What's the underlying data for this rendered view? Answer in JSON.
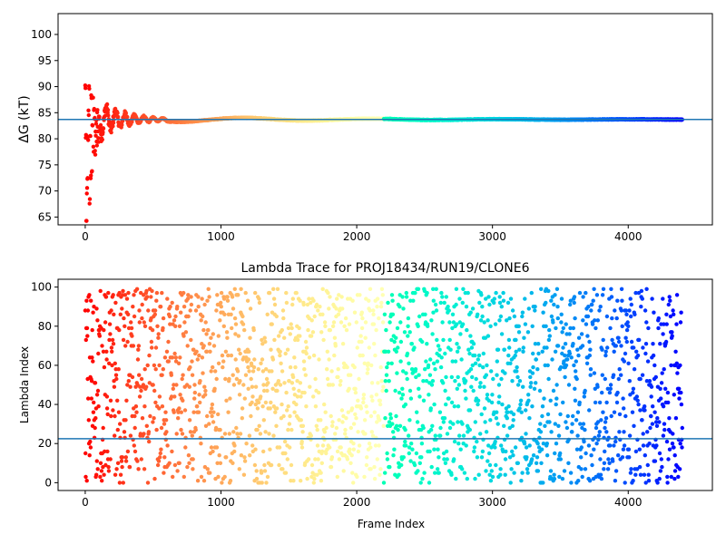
{
  "chart_data": [
    {
      "type": "scatter",
      "title": "",
      "xlabel": "",
      "ylabel": "ΔG (kT)",
      "xlim": [
        -200,
        4620
      ],
      "ylim": [
        63.5,
        104
      ],
      "xticks": [
        0,
        1000,
        2000,
        3000,
        4000
      ],
      "xtick_labels": [
        "0",
        "1000",
        "2000",
        "3000",
        "4000"
      ],
      "yticks": [
        65,
        70,
        75,
        80,
        85,
        90,
        95,
        100
      ],
      "ytick_labels": [
        "65",
        "70",
        "75",
        "80",
        "85",
        "90",
        "95",
        "100"
      ],
      "colormap": "rainbow (red at frame 0 → violet at last frame)",
      "n_frames": 4400,
      "hline": {
        "y": 83.7,
        "color": "#1f77b4"
      },
      "series_description": "Running free-energy estimate per frame; starts scattered between ~64 and ~90, oscillates 80–86 up to ~500, then converges to ~83.7",
      "early_points": [
        {
          "x": 0,
          "y": 90
        },
        {
          "x": 5,
          "y": 80
        },
        {
          "x": 8,
          "y": 64
        },
        {
          "x": 12,
          "y": 70
        },
        {
          "x": 16,
          "y": 72
        },
        {
          "x": 20,
          "y": 80
        },
        {
          "x": 24,
          "y": 85
        },
        {
          "x": 28,
          "y": 90
        },
        {
          "x": 32,
          "y": 68
        },
        {
          "x": 36,
          "y": 80
        },
        {
          "x": 40,
          "y": 73
        },
        {
          "x": 44,
          "y": 88
        },
        {
          "x": 48,
          "y": 74
        },
        {
          "x": 52,
          "y": 82
        },
        {
          "x": 56,
          "y": 88
        },
        {
          "x": 60,
          "y": 78
        },
        {
          "x": 64,
          "y": 86
        },
        {
          "x": 68,
          "y": 84
        },
        {
          "x": 72,
          "y": 77
        },
        {
          "x": 76,
          "y": 81
        },
        {
          "x": 80,
          "y": 83
        },
        {
          "x": 84,
          "y": 79
        },
        {
          "x": 88,
          "y": 85
        },
        {
          "x": 92,
          "y": 82
        },
        {
          "x": 96,
          "y": 80
        },
        {
          "x": 100,
          "y": 84
        }
      ],
      "converged_value": 83.7
    },
    {
      "type": "scatter",
      "title": "Lambda Trace for PROJ18434/RUN19/CLONE6",
      "xlabel": "Frame Index",
      "ylabel": "Lambda Index",
      "xlim": [
        -200,
        4620
      ],
      "ylim": [
        -4,
        104
      ],
      "xticks": [
        0,
        1000,
        2000,
        3000,
        4000
      ],
      "xtick_labels": [
        "0",
        "1000",
        "2000",
        "3000",
        "4000"
      ],
      "yticks": [
        0,
        20,
        40,
        60,
        80,
        100
      ],
      "ytick_labels": [
        "0",
        "20",
        "40",
        "60",
        "80",
        "100"
      ],
      "colormap": "rainbow (red at frame 0 → violet at last frame)",
      "n_frames": 4400,
      "lambda_range": [
        0,
        99
      ],
      "hline": {
        "y": 22.5,
        "color": "#1f77b4"
      },
      "series_description": "Lambda index visited at each frame, spread roughly uniformly over 0–99 across all frames"
    }
  ],
  "colors": {
    "hline": "#1f77b4",
    "axes": "#000000",
    "background": "#ffffff"
  }
}
